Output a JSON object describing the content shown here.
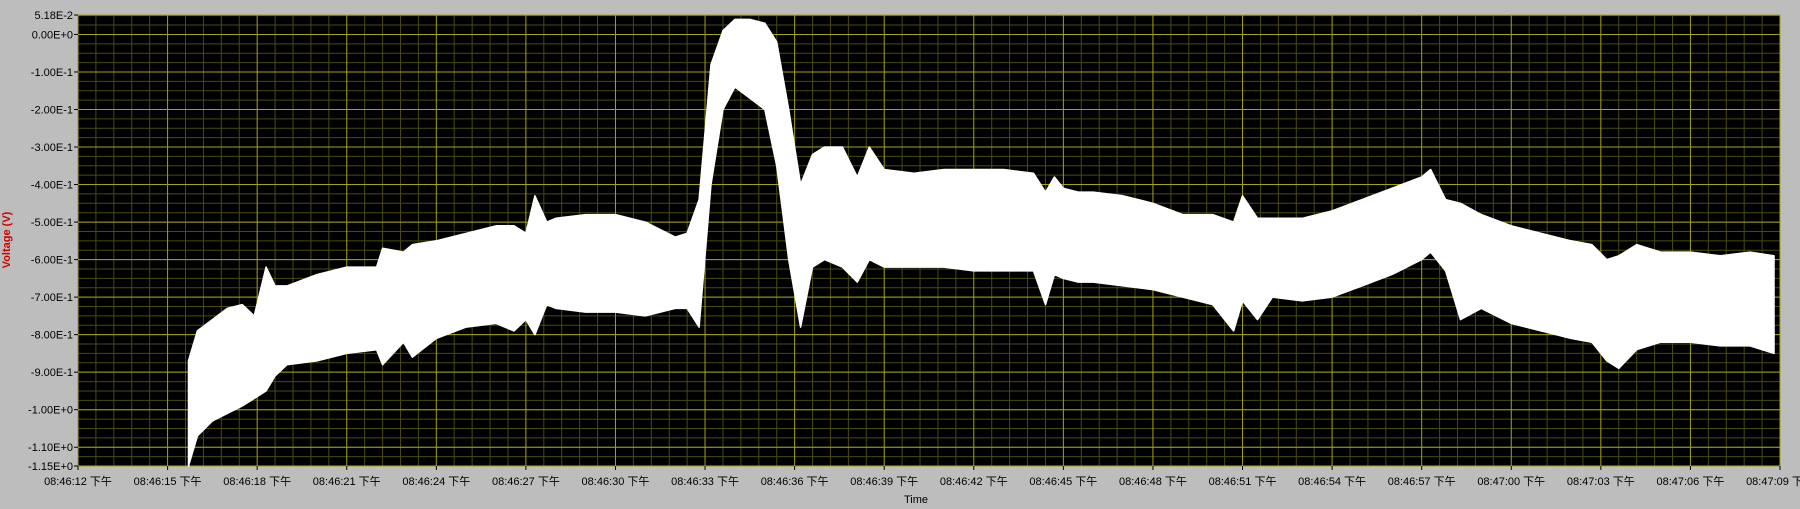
{
  "chart_data": {
    "type": "area",
    "title": "",
    "xlabel": "Time",
    "ylabel": "Voltage (V)",
    "ylim": [
      -1.15,
      0.0518
    ],
    "grid": true,
    "legend": "none",
    "x_tick_labels": [
      "08:46:12 下午",
      "08:46:15 下午",
      "08:46:18 下午",
      "08:46:21 下午",
      "08:46:24 下午",
      "08:46:27 下午",
      "08:46:30 下午",
      "08:46:33 下午",
      "08:46:36 下午",
      "08:46:39 下午",
      "08:46:42 下午",
      "08:46:45 下午",
      "08:46:48 下午",
      "08:46:51 下午",
      "08:46:54 下午",
      "08:46:57 下午",
      "08:47:00 下午",
      "08:47:03 下午",
      "08:47:06 下午",
      "08:47:09 下午"
    ],
    "y_ticks": [
      {
        "value": 0.0518,
        "label": "5.18E-2"
      },
      {
        "value": 0.0,
        "label": "0.00E+0"
      },
      {
        "value": -0.1,
        "label": "-1.00E-1"
      },
      {
        "value": -0.2,
        "label": "-2.00E-1"
      },
      {
        "value": -0.3,
        "label": "-3.00E-1"
      },
      {
        "value": -0.4,
        "label": "-4.00E-1"
      },
      {
        "value": -0.5,
        "label": "-5.00E-1"
      },
      {
        "value": -0.6,
        "label": "-6.00E-1"
      },
      {
        "value": -0.7,
        "label": "-7.00E-1"
      },
      {
        "value": -0.8,
        "label": "-8.00E-1"
      },
      {
        "value": -0.9,
        "label": "-9.00E-1"
      },
      {
        "value": -1.0,
        "label": "-1.00E+0"
      },
      {
        "value": -1.1,
        "label": "-1.10E+0"
      },
      {
        "value": -1.15,
        "label": "-1.15E+0"
      }
    ],
    "series": [
      {
        "x": [
          "08:46:15.7",
          "08:46:16.0",
          "08:46:16.5",
          "08:46:17.0",
          "08:46:17.5",
          "08:46:17.9",
          "08:46:18.3",
          "08:46:18.6",
          "08:46:19.0",
          "08:46:20.0",
          "08:46:21.0",
          "08:46:22.0",
          "08:46:22.2",
          "08:46:22.9",
          "08:46:23.2",
          "08:46:24.0",
          "08:46:25.0",
          "08:46:26.0",
          "08:46:26.6",
          "08:46:27.0",
          "08:46:27.3",
          "08:46:27.7",
          "08:46:28.0",
          "08:46:29.0",
          "08:46:30.0",
          "08:46:31.0",
          "08:46:32.0",
          "08:46:32.4",
          "08:46:32.8",
          "08:46:33.2",
          "08:46:33.6",
          "08:46:34.0",
          "08:46:34.5",
          "08:46:35.0",
          "08:46:35.4",
          "08:46:35.8",
          "08:46:36.2",
          "08:46:36.6",
          "08:46:37.0",
          "08:46:37.6",
          "08:46:38.1",
          "08:46:38.5",
          "08:46:39.0",
          "08:46:40.0",
          "08:46:41.0",
          "08:46:42.0",
          "08:46:43.0",
          "08:46:44.0",
          "08:46:44.4",
          "08:46:44.7",
          "08:46:45.0",
          "08:46:45.5",
          "08:46:46.0",
          "08:46:47.0",
          "08:46:48.0",
          "08:46:49.0",
          "08:46:50.0",
          "08:46:50.7",
          "08:46:51.0",
          "08:46:51.5",
          "08:46:52.0",
          "08:46:53.0",
          "08:46:54.0",
          "08:46:55.0",
          "08:46:56.0",
          "08:46:57.0",
          "08:46:57.3",
          "08:46:57.8",
          "08:46:58.3",
          "08:46:59.0",
          "08:47:00.0",
          "08:47:01.0",
          "08:47:02.0",
          "08:47:02.7",
          "08:47:03.2",
          "08:47:03.6",
          "08:47:04.2",
          "08:47:05.0",
          "08:47:06.0",
          "08:47:07.0",
          "08:47:08.0",
          "08:47:08.8"
        ],
        "upper": [
          -0.87,
          -0.79,
          -0.76,
          -0.73,
          -0.72,
          -0.75,
          -0.62,
          -0.67,
          -0.67,
          -0.64,
          -0.62,
          -0.62,
          -0.57,
          -0.58,
          -0.56,
          -0.55,
          -0.53,
          -0.51,
          -0.51,
          -0.53,
          -0.43,
          -0.5,
          -0.49,
          -0.48,
          -0.48,
          -0.5,
          -0.54,
          -0.53,
          -0.44,
          -0.08,
          0.01,
          0.04,
          0.04,
          0.03,
          -0.02,
          -0.2,
          -0.4,
          -0.32,
          -0.3,
          -0.3,
          -0.38,
          -0.3,
          -0.36,
          -0.37,
          -0.36,
          -0.36,
          -0.36,
          -0.37,
          -0.42,
          -0.38,
          -0.41,
          -0.42,
          -0.42,
          -0.43,
          -0.45,
          -0.48,
          -0.48,
          -0.5,
          -0.43,
          -0.49,
          -0.49,
          -0.49,
          -0.47,
          -0.44,
          -0.41,
          -0.38,
          -0.36,
          -0.44,
          -0.45,
          -0.48,
          -0.51,
          -0.53,
          -0.55,
          -0.56,
          -0.6,
          -0.59,
          -0.56,
          -0.58,
          -0.58,
          -0.59,
          -0.58,
          -0.59
        ],
        "lower": [
          -1.15,
          -1.07,
          -1.03,
          -1.01,
          -0.99,
          -0.97,
          -0.95,
          -0.91,
          -0.88,
          -0.87,
          -0.85,
          -0.84,
          -0.88,
          -0.82,
          -0.86,
          -0.81,
          -0.78,
          -0.77,
          -0.79,
          -0.76,
          -0.8,
          -0.72,
          -0.73,
          -0.74,
          -0.74,
          -0.75,
          -0.73,
          -0.73,
          -0.78,
          -0.4,
          -0.2,
          -0.14,
          -0.17,
          -0.2,
          -0.35,
          -0.6,
          -0.78,
          -0.62,
          -0.6,
          -0.62,
          -0.66,
          -0.6,
          -0.62,
          -0.62,
          -0.62,
          -0.63,
          -0.63,
          -0.63,
          -0.72,
          -0.64,
          -0.65,
          -0.66,
          -0.66,
          -0.67,
          -0.68,
          -0.7,
          -0.72,
          -0.79,
          -0.71,
          -0.76,
          -0.7,
          -0.71,
          -0.7,
          -0.67,
          -0.64,
          -0.6,
          -0.58,
          -0.63,
          -0.76,
          -0.73,
          -0.77,
          -0.79,
          -0.81,
          -0.82,
          -0.87,
          -0.89,
          -0.84,
          -0.82,
          -0.82,
          -0.83,
          -0.83,
          -0.85
        ]
      }
    ]
  }
}
